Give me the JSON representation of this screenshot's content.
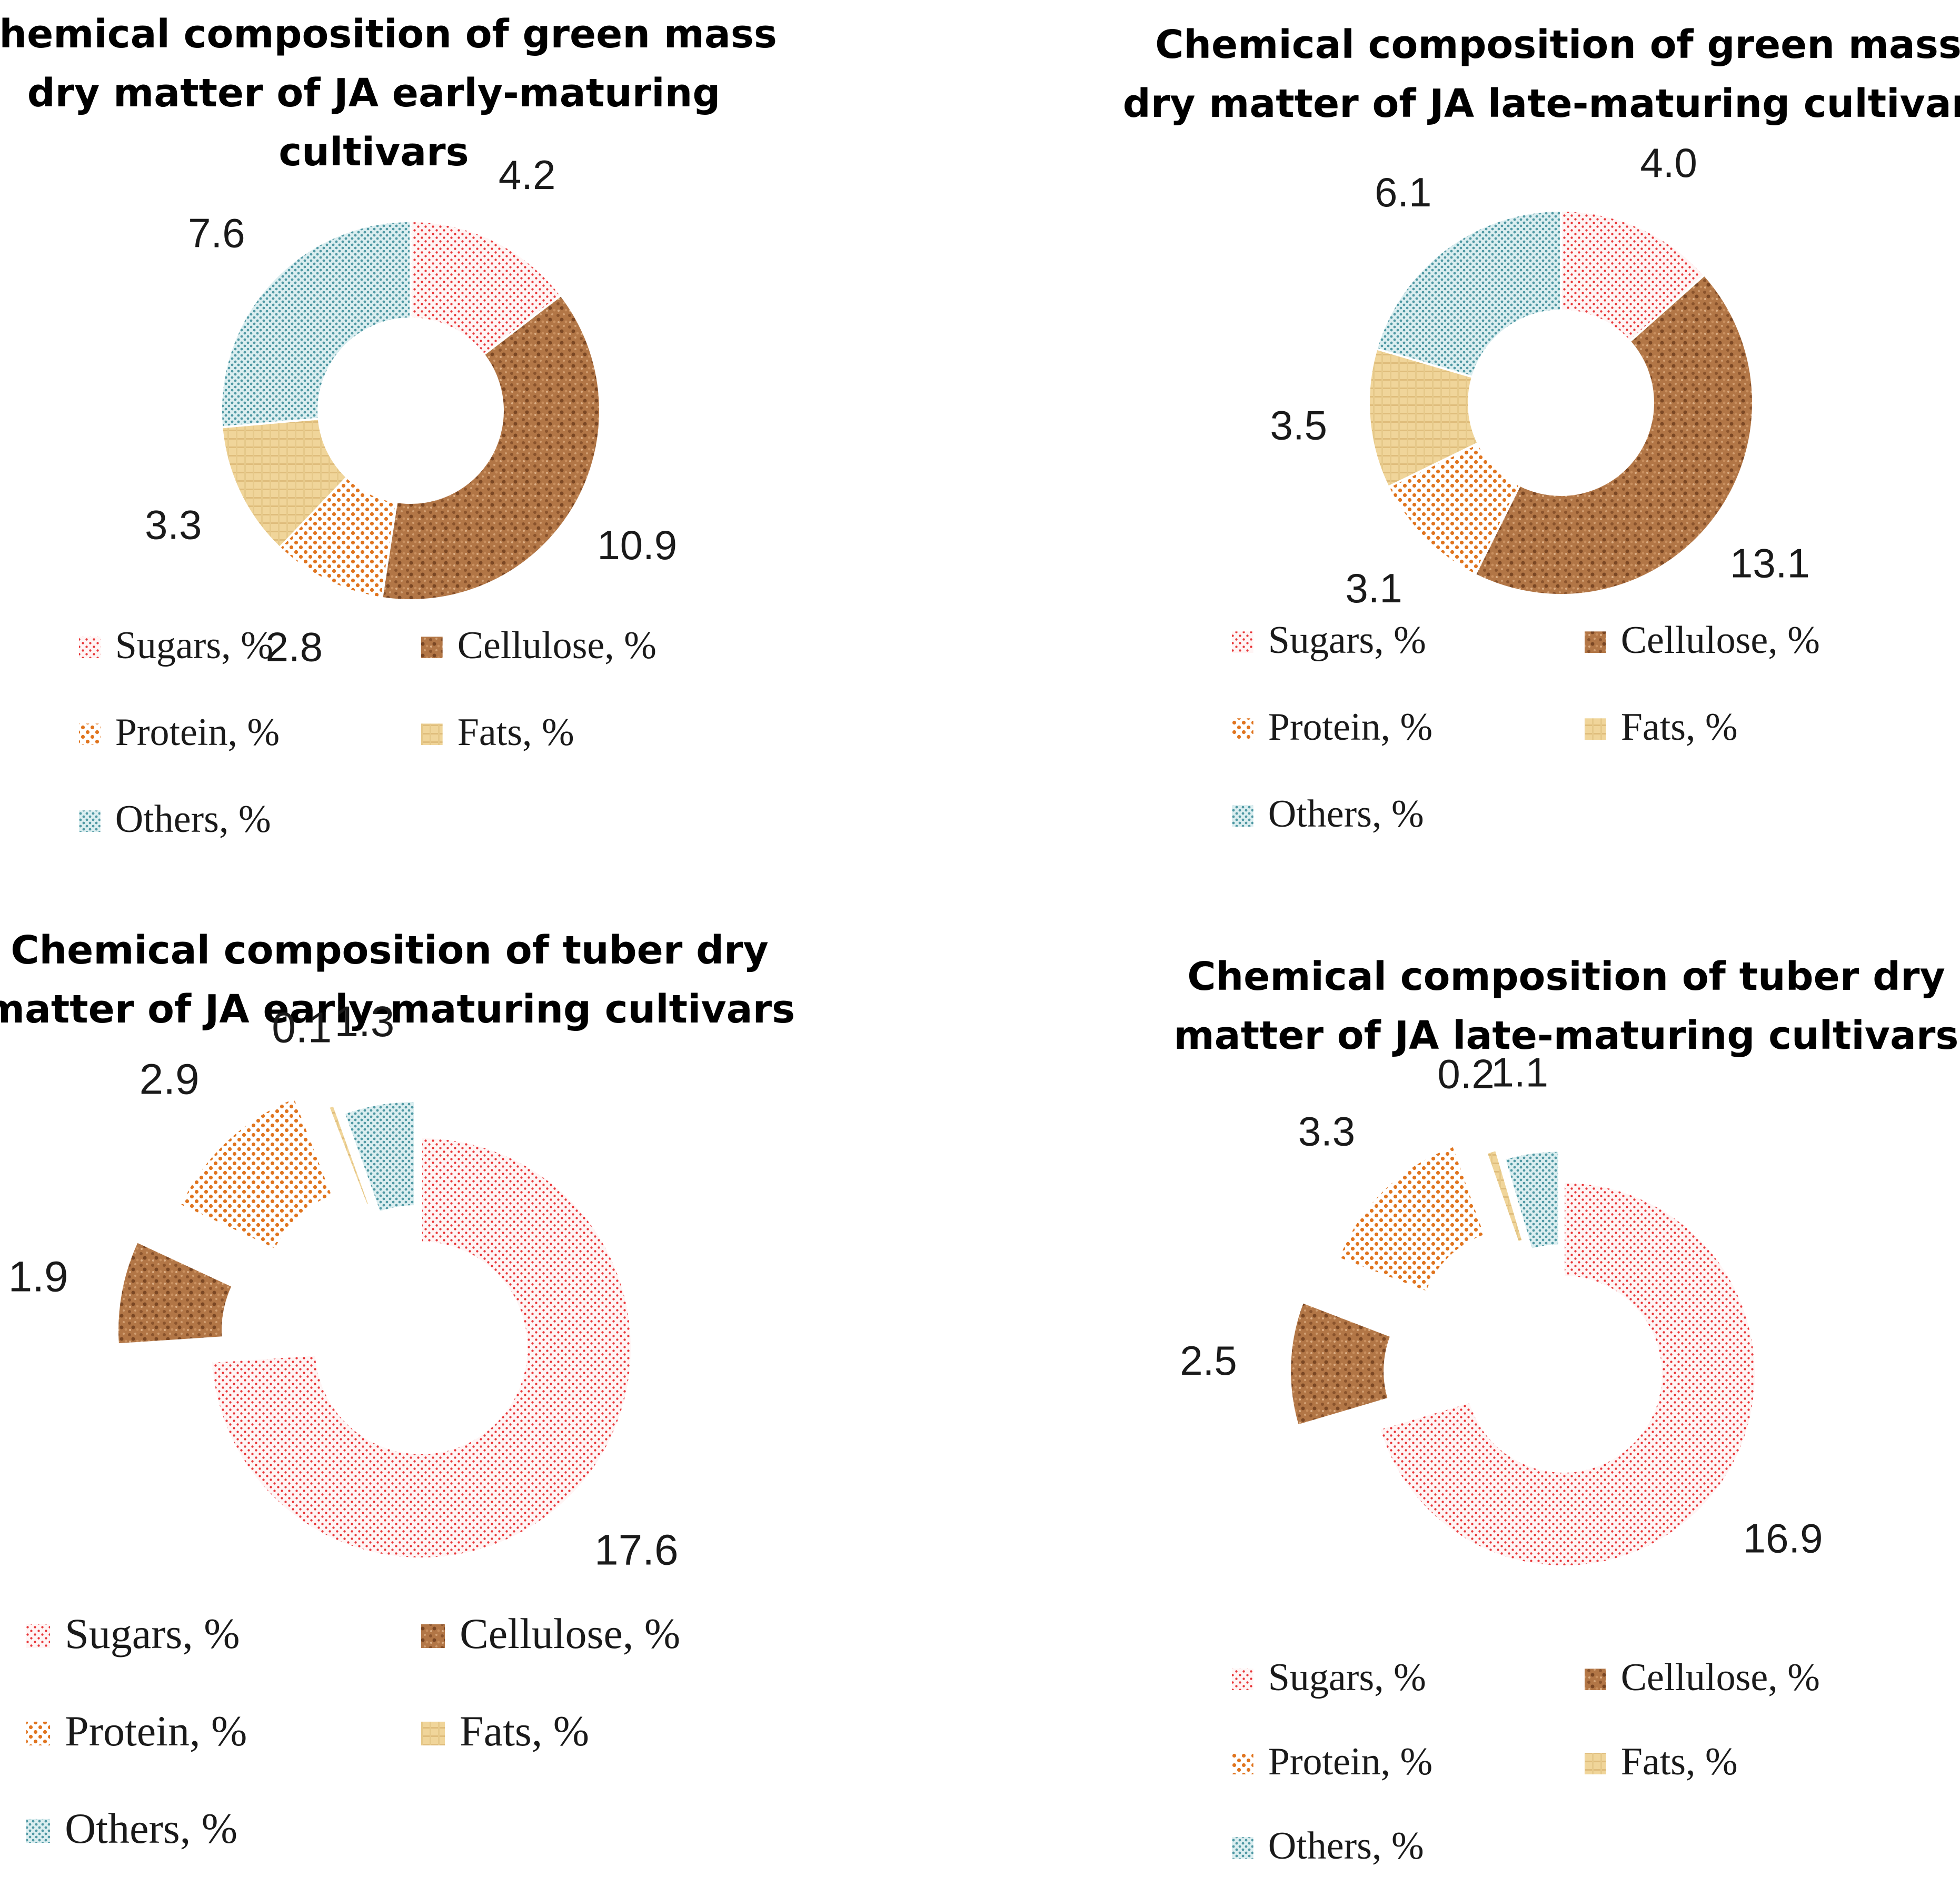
{
  "colors": {
    "sugars": "#e8383a",
    "cellulose": "#a9693f",
    "protein": "#e0741e",
    "fats": "#e9c784",
    "others": "#4f98a3"
  },
  "legend_suffix": ", %",
  "chart_data": [
    {
      "type": "donut",
      "title_lines": [
        "Chemical composition of green mass",
        "dry matter of JA early-maturing",
        "cultivars"
      ],
      "categories": [
        "Sugars",
        "Cellulose",
        "Protein",
        "Fats",
        "Others"
      ],
      "values": [
        4.2,
        10.9,
        2.8,
        3.3,
        7.6
      ],
      "value_labels": [
        "4.2",
        "10.9",
        "2.8",
        "3.3",
        "7.6"
      ],
      "exploded": false
    },
    {
      "type": "donut",
      "title_lines": [
        "Chemical composition of green mass",
        "dry matter of JA late-maturing cultivars"
      ],
      "categories": [
        "Sugars",
        "Cellulose",
        "Protein",
        "Fats",
        "Others"
      ],
      "values": [
        4.0,
        13.1,
        3.1,
        3.5,
        6.1
      ],
      "value_labels": [
        "4.0",
        "13.1",
        "3.1",
        "3.5",
        "6.1"
      ],
      "exploded": false
    },
    {
      "type": "donut",
      "title_lines": [
        "Chemical composition of tuber dry",
        "matter of JA early-maturing cultivars"
      ],
      "categories": [
        "Sugars",
        "Cellulose",
        "Protein",
        "Fats",
        "Others"
      ],
      "values": [
        17.6,
        1.9,
        2.9,
        0.1,
        1.3
      ],
      "value_labels": [
        "17.6",
        "1.9",
        "2.9",
        "0.1",
        "1.3"
      ],
      "exploded": true
    },
    {
      "type": "donut",
      "title_lines": [
        "Chemical composition of tuber dry",
        "matter of JA late-maturing cultivars"
      ],
      "categories": [
        "Sugars",
        "Cellulose",
        "Protein",
        "Fats",
        "Others"
      ],
      "values": [
        16.9,
        2.5,
        3.3,
        0.2,
        1.1
      ],
      "value_labels": [
        "16.9",
        "2.5",
        "3.3",
        "0.2",
        "1.1"
      ],
      "exploded": true
    }
  ]
}
